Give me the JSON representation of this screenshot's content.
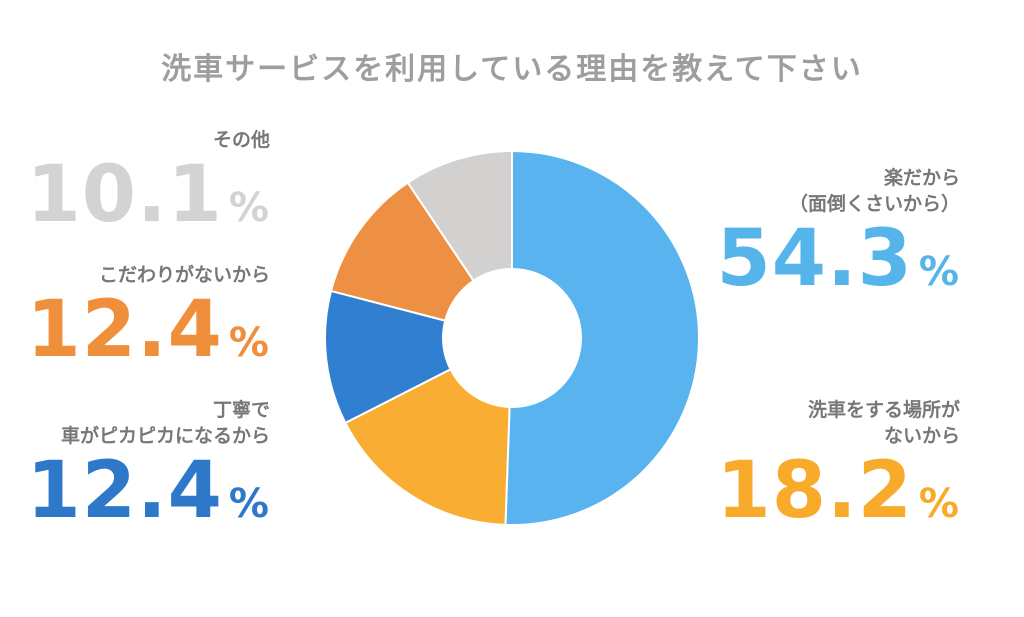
{
  "colors": {
    "slice_1": "#58b3ef",
    "slice_2": "#f9ad32",
    "slice_3": "#317fd0",
    "slice_4": "#ee9043",
    "slice_5": "#d2d1cf",
    "pct_text_1": "#55b5ea",
    "pct_text_2": "#f8ab2a",
    "pct_text_3": "#2d78c9",
    "pct_text_4": "#ef8f3b",
    "pct_text_5": "#d4d3d1"
  },
  "chart_data": {
    "type": "pie",
    "variant": "donut",
    "title": "洗車サービスを利用している理由を教えて下さい",
    "unit": "%",
    "slices": [
      {
        "label": "楽だから（面倒くさいから）",
        "label_lines": [
          "楽だから",
          "（面倒くさいから）"
        ],
        "value": 54.3,
        "value_text": "54.3"
      },
      {
        "label": "洗車をする場所がないから",
        "label_lines": [
          "洗車をする場所が",
          "ないから"
        ],
        "value": 18.2,
        "value_text": "18.2"
      },
      {
        "label": "丁寧で車がピカピカになるから",
        "label_lines": [
          "丁寧で",
          "車がピカピカになるから"
        ],
        "value": 12.4,
        "value_text": "12.4"
      },
      {
        "label": "こだわりがないから",
        "label_lines": [
          "こだわりがないから"
        ],
        "value": 12.4,
        "value_text": "12.4"
      },
      {
        "label": "その他",
        "label_lines": [
          "その他"
        ],
        "value": 10.1,
        "value_text": "10.1"
      }
    ]
  }
}
